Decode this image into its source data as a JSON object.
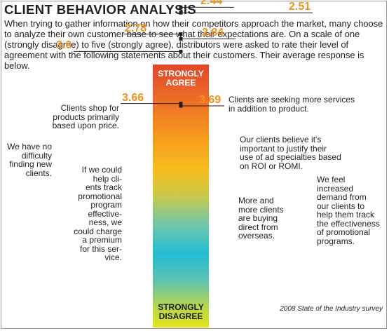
{
  "title": "CLIENT BEHAVIOR ANALYSIS",
  "intro": "When trying to gather information on how their competitors approach the market, many choose to analyze their own customer base to see what their expectations are. On a scale of one (strongly disagree) to five (strongly agree), distributors were asked to rate their level of agreement with the following statements about their customers. Their average response is below.",
  "source": "2008 State of the Industry survey",
  "colors": {
    "accent": "#f4901e",
    "bar_top": "#e2462b",
    "bar_bottom": "#e6e419"
  },
  "chart_data": {
    "type": "scatter",
    "scale": {
      "min": 1,
      "max": 5,
      "top_label": "STRONGLY AGREE",
      "bottom_label": "STRONGLY DISAGREE"
    },
    "points": [
      {
        "value": 3.69,
        "label": "3.69",
        "side": "right",
        "statement": "Clients are seeking more services in addition to product."
      },
      {
        "value": 3.66,
        "label": "3.66",
        "side": "left",
        "statement": "Clients shop for products primarily based upon price."
      },
      {
        "value": 3.0,
        "label": "3.0",
        "side": "left",
        "statement": "We have no difficulty finding new clients."
      },
      {
        "value": 2.84,
        "label": "2.84",
        "side": "right",
        "statement": "Our clients believe it's important to justify their use of ad specialties based on ROI or ROMI."
      },
      {
        "value": 2.78,
        "label": "2.78",
        "side": "left",
        "statement": "If we could help clients track promotional program effectiveness, we could charge a premium for this service."
      },
      {
        "value": 2.51,
        "label": "2.51",
        "side": "right",
        "statement": "We feel increased demand from our clients to help them track the effectiveness of promotional programs."
      },
      {
        "value": 2.44,
        "label": "2.44",
        "side": "right",
        "statement": "More and more clients are buying direct from overseas."
      }
    ]
  }
}
